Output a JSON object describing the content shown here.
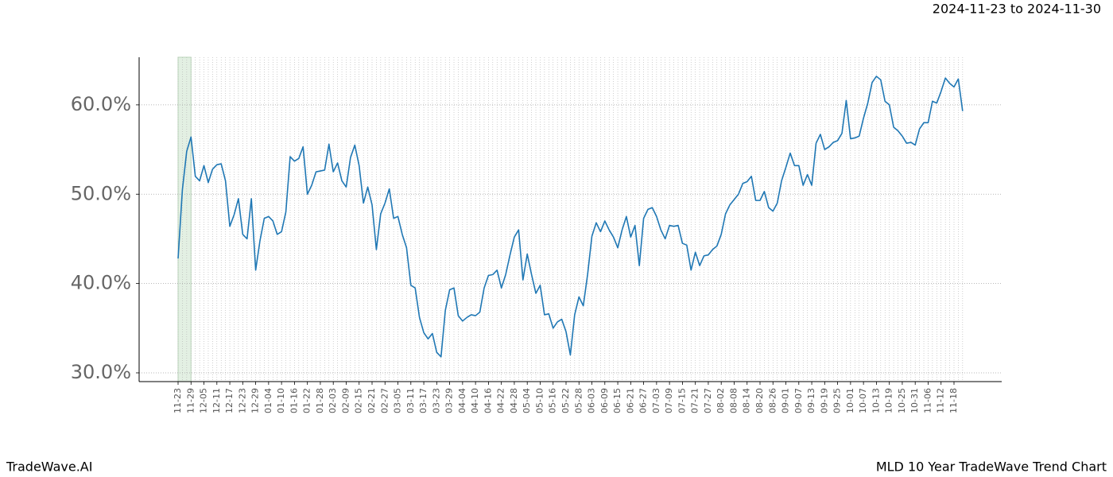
{
  "chart_data": {
    "type": "line",
    "title": "2024-11-23 to 2024-11-30",
    "footer_left": "TradeWave.AI",
    "footer_right": "MLD 10 Year TradeWave Trend Chart",
    "categories": [
      "11-23",
      null,
      null,
      "11-29",
      null,
      null,
      "12-05",
      null,
      null,
      "12-11",
      null,
      null,
      "12-17",
      null,
      null,
      "12-23",
      null,
      null,
      "12-29",
      null,
      null,
      "01-04",
      null,
      null,
      "01-10",
      null,
      null,
      "01-16",
      null,
      null,
      "01-22",
      null,
      null,
      "01-28",
      null,
      null,
      "02-03",
      null,
      null,
      "02-09",
      null,
      null,
      "02-15",
      null,
      null,
      "02-21",
      null,
      null,
      "02-27",
      null,
      null,
      "03-05",
      null,
      null,
      "03-11",
      null,
      null,
      "03-17",
      null,
      null,
      "03-23",
      null,
      null,
      "03-29",
      null,
      null,
      "04-04",
      null,
      null,
      "04-10",
      null,
      null,
      "04-16",
      null,
      null,
      "04-22",
      null,
      null,
      "04-28",
      null,
      null,
      "05-04",
      null,
      null,
      "05-10",
      null,
      null,
      "05-16",
      null,
      null,
      "05-22",
      null,
      null,
      "05-28",
      null,
      null,
      "06-03",
      null,
      null,
      "06-09",
      null,
      null,
      "06-15",
      null,
      null,
      "06-21",
      null,
      null,
      "06-27",
      null,
      null,
      "07-03",
      null,
      null,
      "07-09",
      null,
      null,
      "07-15",
      null,
      null,
      "07-21",
      null,
      null,
      "07-27",
      null,
      null,
      "08-02",
      null,
      null,
      "08-08",
      null,
      null,
      "08-14",
      null,
      null,
      "08-20",
      null,
      null,
      "08-26",
      null,
      null,
      "09-01",
      null,
      null,
      "09-07",
      null,
      null,
      "09-13",
      null,
      null,
      "09-19",
      null,
      null,
      "09-25",
      null,
      null,
      "10-01",
      null,
      null,
      "10-07",
      null,
      null,
      "10-13",
      null,
      null,
      "10-19",
      null,
      null,
      "10-25",
      null,
      null,
      "10-31",
      null,
      null,
      "11-06",
      null,
      null,
      "11-12",
      null,
      null,
      "11-18",
      null,
      null
    ],
    "series": [
      {
        "name": "MLD",
        "color": "#1f77b4",
        "values": [
          42.8,
          50.5,
          54.8,
          56.4,
          52,
          51.5,
          53.2,
          51.3,
          52.8,
          53.3,
          53.4,
          51.5,
          46.4,
          47.7,
          49.5,
          45.5,
          45,
          49.5,
          41.5,
          44.8,
          47.3,
          47.5,
          47,
          45.5,
          45.8,
          48,
          54.2,
          53.7,
          54,
          55.3,
          50,
          51,
          52.5,
          52.6,
          52.7,
          55.6,
          52.5,
          53.5,
          51.5,
          50.8,
          54.1,
          55.5,
          53.2,
          49,
          50.8,
          48.8,
          43.8,
          47.8,
          49,
          50.6,
          47.3,
          47.5,
          45.5,
          44,
          39.8,
          39.5,
          36.2,
          34.5,
          33.8,
          34.4,
          32.3,
          31.8,
          37,
          39.3,
          39.5,
          36.4,
          35.8,
          36.2,
          36.5,
          36.4,
          36.8,
          39.5,
          40.9,
          41,
          41.5,
          39.5,
          41,
          43.2,
          45.2,
          46,
          40.4,
          43.3,
          41,
          38.9,
          39.8,
          36.5,
          36.6,
          35,
          35.7,
          36,
          34.6,
          32,
          36.5,
          38.5,
          37.5,
          41,
          45.3,
          46.8,
          45.8,
          47,
          46,
          45.2,
          44,
          46,
          47.5,
          45.2,
          46.5,
          42,
          47.3,
          48.3,
          48.5,
          47.5,
          46,
          45,
          46.5,
          46.4,
          46.5,
          44.5,
          44.3,
          41.5,
          43.5,
          42,
          43.1,
          43.2,
          43.8,
          44.2,
          45.5,
          47.8,
          48.8,
          49.4,
          50,
          51.2,
          51.4,
          52,
          49.3,
          49.3,
          50.3,
          48.5,
          48.1,
          49,
          51.5,
          53,
          54.6,
          53.2,
          53.2,
          51,
          52.2,
          51,
          55.7,
          56.7,
          55,
          55.3,
          55.8,
          56,
          56.8,
          60.5,
          56.2,
          56.3,
          56.5,
          58.5,
          60.2,
          62.5,
          63.2,
          62.8,
          60.4,
          60,
          57.5,
          57.1,
          56.5,
          55.7,
          55.8,
          55.5,
          57.3,
          58,
          58,
          60.4,
          60.2,
          61.5,
          63,
          62.4,
          62,
          62.9,
          59.3
        ]
      }
    ],
    "highlight": {
      "start": "11-23",
      "end": "11-29",
      "color": "#e3f0e3"
    },
    "ylim": [
      29.02,
      65.33
    ],
    "yticks": [
      {
        "value": 30,
        "label": "30.0%"
      },
      {
        "value": 40,
        "label": "40.0%"
      },
      {
        "value": 50,
        "label": "50.0%"
      },
      {
        "value": 60,
        "label": "60.0%"
      }
    ],
    "grid": true
  }
}
